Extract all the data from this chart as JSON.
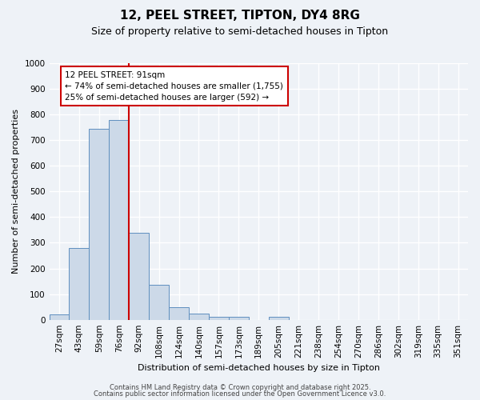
{
  "title": "12, PEEL STREET, TIPTON, DY4 8RG",
  "subtitle": "Size of property relative to semi-detached houses in Tipton",
  "xlabel": "Distribution of semi-detached houses by size in Tipton",
  "ylabel": "Number of semi-detached properties",
  "bar_data": [
    {
      "label": "27sqm",
      "value": 20
    },
    {
      "label": "43sqm",
      "value": 280
    },
    {
      "label": "59sqm",
      "value": 745
    },
    {
      "label": "76sqm",
      "value": 780
    },
    {
      "label": "92sqm",
      "value": 340
    },
    {
      "label": "108sqm",
      "value": 135
    },
    {
      "label": "124sqm",
      "value": 48
    },
    {
      "label": "140sqm",
      "value": 25
    },
    {
      "label": "157sqm",
      "value": 12
    },
    {
      "label": "173sqm",
      "value": 12
    },
    {
      "label": "189sqm",
      "value": 0
    },
    {
      "label": "205sqm",
      "value": 12
    },
    {
      "label": "221sqm",
      "value": 0
    },
    {
      "label": "238sqm",
      "value": 0
    },
    {
      "label": "254sqm",
      "value": 0
    },
    {
      "label": "270sqm",
      "value": 0
    },
    {
      "label": "286sqm",
      "value": 0
    },
    {
      "label": "302sqm",
      "value": 0
    },
    {
      "label": "319sqm",
      "value": 0
    },
    {
      "label": "335sqm",
      "value": 0
    },
    {
      "label": "351sqm",
      "value": 0
    }
  ],
  "bar_color": "#ccd9e8",
  "bar_edge_color": "#5f8fbf",
  "vline_bin_index": 4,
  "vline_color": "#cc0000",
  "annotation_line1": "12 PEEL STREET: 91sqm",
  "annotation_line2": "← 74% of semi-detached houses are smaller (1,755)",
  "annotation_line3": "25% of semi-detached houses are larger (592) →",
  "annotation_box_color": "#ffffff",
  "annotation_box_edge": "#cc0000",
  "ylim": [
    0,
    1000
  ],
  "yticks": [
    0,
    100,
    200,
    300,
    400,
    500,
    600,
    700,
    800,
    900,
    1000
  ],
  "bg_color": "#eef2f7",
  "grid_color": "#ffffff",
  "title_fontsize": 11,
  "subtitle_fontsize": 9,
  "axis_label_fontsize": 8,
  "tick_fontsize": 7.5,
  "footer_line1": "Contains HM Land Registry data © Crown copyright and database right 2025.",
  "footer_line2": "Contains public sector information licensed under the Open Government Licence v3.0."
}
